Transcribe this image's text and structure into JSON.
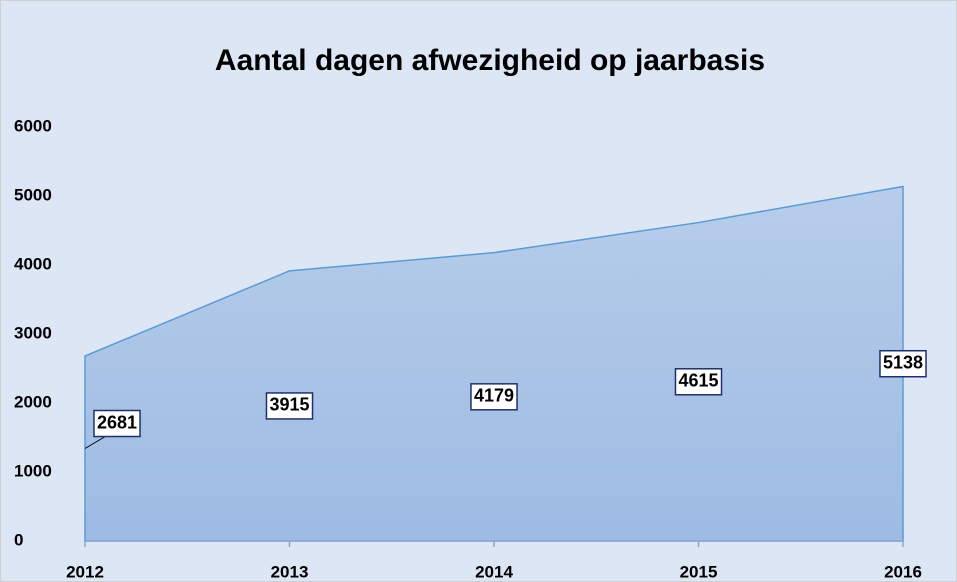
{
  "chart_data": {
    "type": "area",
    "title": "Aantal dagen afwezigheid op jaarbasis",
    "categories": [
      "2012",
      "2013",
      "2014",
      "2015",
      "2016"
    ],
    "values": [
      2681,
      3915,
      4179,
      4615,
      5138
    ],
    "color": "#5b9bd5",
    "ylim": [
      0,
      6000
    ],
    "yticks": [
      0,
      1000,
      2000,
      3000,
      4000,
      5000,
      6000
    ],
    "grid": false
  }
}
